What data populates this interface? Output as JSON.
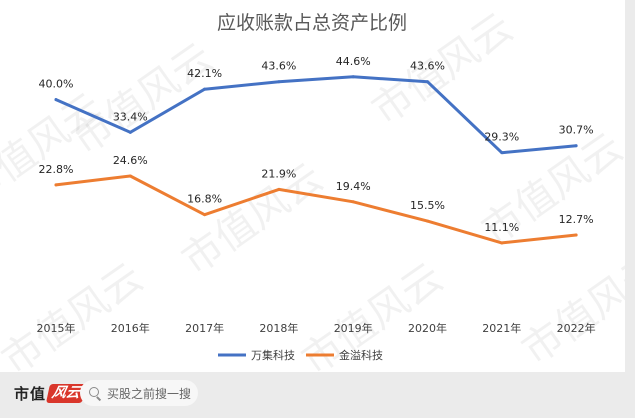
{
  "chart_data": {
    "type": "line",
    "title": "应收账款占总资产比例",
    "categories": [
      "2015年",
      "2016年",
      "2017年",
      "2018年",
      "2019年",
      "2020年",
      "2021年",
      "2022年"
    ],
    "series": [
      {
        "name": "万集科技",
        "color": "#4472c4",
        "values": [
          40.0,
          33.4,
          42.1,
          43.6,
          44.6,
          43.6,
          29.3,
          30.7
        ],
        "labels": [
          "40.0%",
          "33.4%",
          "42.1%",
          "43.6%",
          "44.6%",
          "43.6%",
          "29.3%",
          "30.7%"
        ]
      },
      {
        "name": "金溢科技",
        "color": "#ed7d31",
        "values": [
          22.8,
          24.6,
          16.8,
          21.9,
          19.4,
          15.5,
          11.1,
          12.7
        ],
        "labels": [
          "22.8%",
          "24.6%",
          "16.8%",
          "21.9%",
          "19.4%",
          "15.5%",
          "11.1%",
          "12.7%"
        ]
      }
    ],
    "ylim": [
      0,
      50
    ],
    "grid": false,
    "legend_position": "bottom"
  },
  "watermark": {
    "text": "市值风云"
  },
  "footer": {
    "brand_text": "市值",
    "brand_logo_script": "风云",
    "search_placeholder": "买股之前搜一搜",
    "search_icon": "search-icon"
  }
}
